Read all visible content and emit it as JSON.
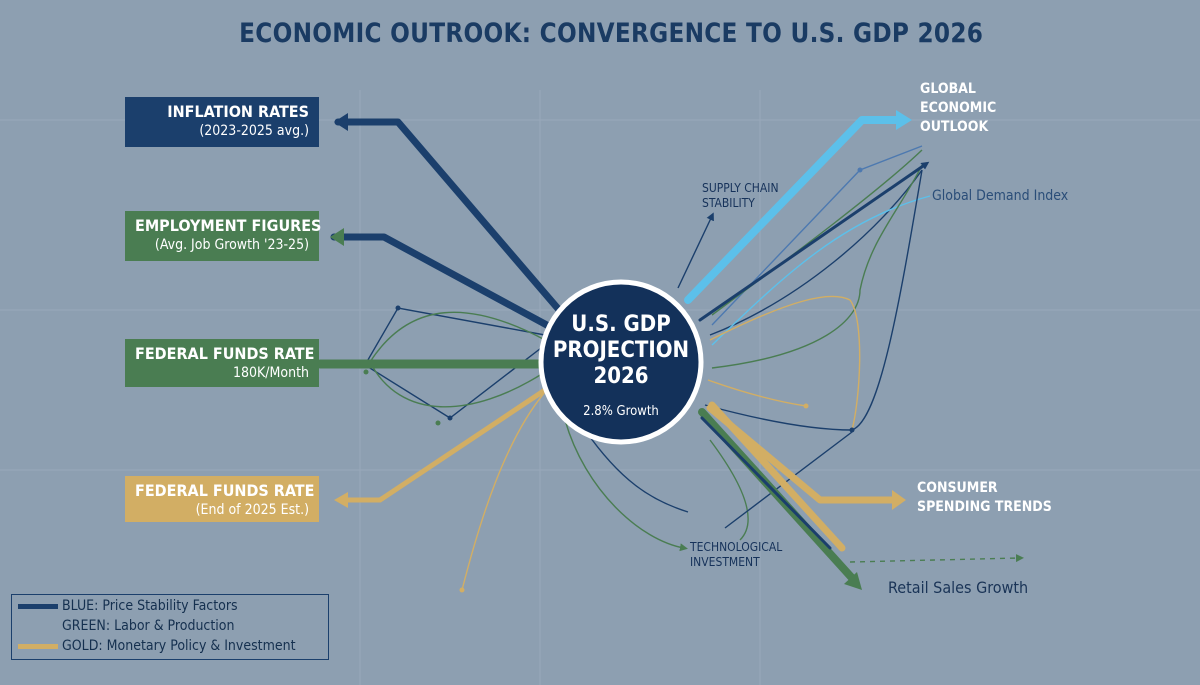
{
  "title": "ECONOMIC OUTROOK: CONVERGENCE TO U.S. GDP 2026",
  "colors": {
    "background": "#8d9fb1",
    "blue": "#1b3f6c",
    "green": "#4a7d52",
    "gold": "#d2ae64",
    "light_blue": "#5cc0ea"
  },
  "center": {
    "title_lines": [
      "U.S. GDP",
      "PROJECTION",
      "2026"
    ],
    "subtitle": "2.8% Growth"
  },
  "left_boxes": [
    {
      "title": "INFLATION RATES",
      "subtitle": "(2023-2025 avg.)",
      "color": "blue"
    },
    {
      "title": "EMPLOYMENT FIGURES",
      "subtitle": "(Avg. Job Growth '23-25)",
      "color": "green"
    },
    {
      "title": "FEDERAL FUNDS RATE",
      "subtitle": "180K/Month",
      "color": "green"
    },
    {
      "title": "FEDERAL FUNDS RATE",
      "subtitle": "(End of 2025 Est.)",
      "color": "gold"
    }
  ],
  "right_labels": {
    "global_outlook": [
      "GLOBAL",
      "ECONOMIC",
      "OUTLOOK"
    ],
    "global_demand": "Global Demand Index",
    "supply_chain": [
      "SUPPLY CHAIN",
      "STABILITY"
    ],
    "consumer_spending": [
      "CONSUMER",
      "SPENDING TRENDS"
    ],
    "tech_investment": [
      "TECHNOLOGICAL",
      "INVESTMENT"
    ],
    "retail_sales": "Retail Sales Growth"
  },
  "legend": [
    {
      "label": "BLUE: Price Stability Factors",
      "color": "blue"
    },
    {
      "label": "GREEN: Labor & Production",
      "color": "green"
    },
    {
      "label": "GOLD: Monetary Policy & Investment",
      "color": "gold"
    }
  ]
}
